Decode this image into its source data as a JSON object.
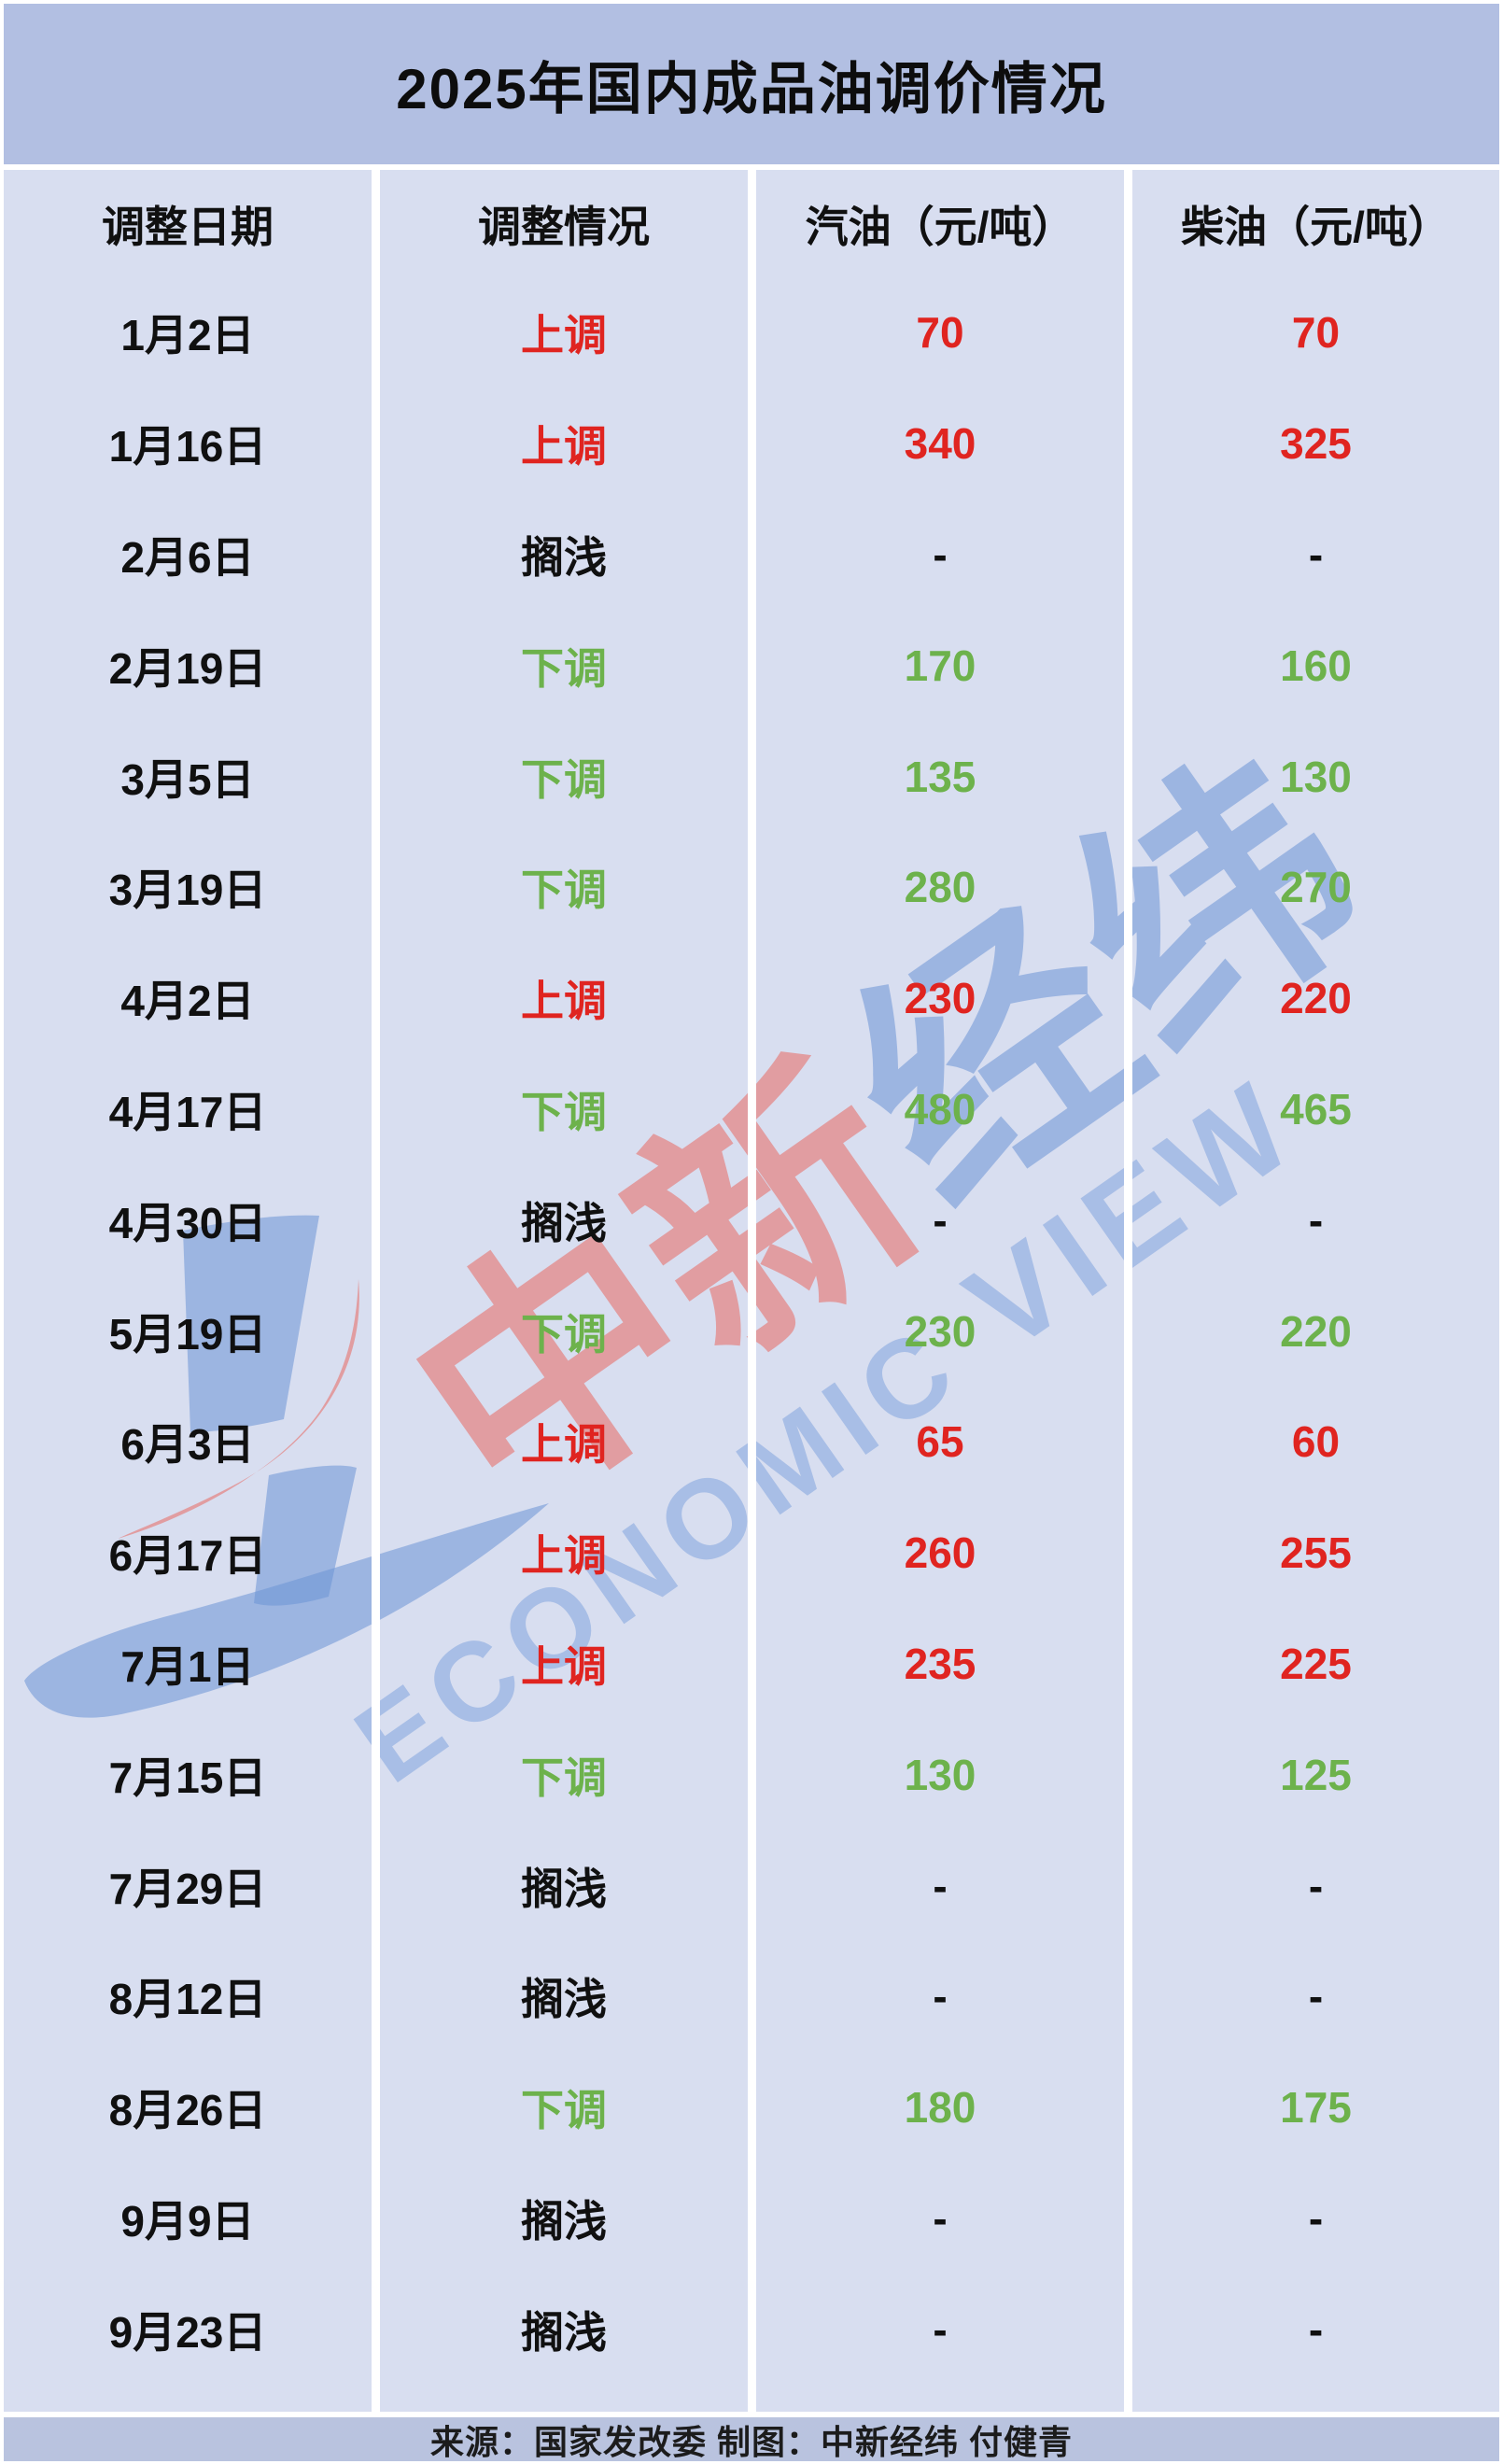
{
  "title": "2025年国内成品油调价情况",
  "table": {
    "headers": [
      "调整日期",
      "调整情况",
      "汽油（元/吨）",
      "柴油（元/吨）"
    ],
    "rows": [
      {
        "date": "1月2日",
        "action": "上调",
        "gasoline": "70",
        "diesel": "70",
        "type": "up"
      },
      {
        "date": "1月16日",
        "action": "上调",
        "gasoline": "340",
        "diesel": "325",
        "type": "up"
      },
      {
        "date": "2月6日",
        "action": "搁浅",
        "gasoline": "-",
        "diesel": "-",
        "type": "hold"
      },
      {
        "date": "2月19日",
        "action": "下调",
        "gasoline": "170",
        "diesel": "160",
        "type": "down"
      },
      {
        "date": "3月5日",
        "action": "下调",
        "gasoline": "135",
        "diesel": "130",
        "type": "down"
      },
      {
        "date": "3月19日",
        "action": "下调",
        "gasoline": "280",
        "diesel": "270",
        "type": "down"
      },
      {
        "date": "4月2日",
        "action": "上调",
        "gasoline": "230",
        "diesel": "220",
        "type": "up"
      },
      {
        "date": "4月17日",
        "action": "下调",
        "gasoline": "480",
        "diesel": "465",
        "type": "down"
      },
      {
        "date": "4月30日",
        "action": "搁浅",
        "gasoline": "-",
        "diesel": "-",
        "type": "hold"
      },
      {
        "date": "5月19日",
        "action": "下调",
        "gasoline": "230",
        "diesel": "220",
        "type": "down"
      },
      {
        "date": "6月3日",
        "action": "上调",
        "gasoline": "65",
        "diesel": "60",
        "type": "up"
      },
      {
        "date": "6月17日",
        "action": "上调",
        "gasoline": "260",
        "diesel": "255",
        "type": "up"
      },
      {
        "date": "7月1日",
        "action": "上调",
        "gasoline": "235",
        "diesel": "225",
        "type": "up"
      },
      {
        "date": "7月15日",
        "action": "下调",
        "gasoline": "130",
        "diesel": "125",
        "type": "down"
      },
      {
        "date": "7月29日",
        "action": "搁浅",
        "gasoline": "-",
        "diesel": "-",
        "type": "hold"
      },
      {
        "date": "8月12日",
        "action": "搁浅",
        "gasoline": "-",
        "diesel": "-",
        "type": "hold"
      },
      {
        "date": "8月26日",
        "action": "下调",
        "gasoline": "180",
        "diesel": "175",
        "type": "down"
      },
      {
        "date": "9月9日",
        "action": "搁浅",
        "gasoline": "-",
        "diesel": "-",
        "type": "hold"
      },
      {
        "date": "9月23日",
        "action": "搁浅",
        "gasoline": "-",
        "diesel": "-",
        "type": "hold"
      }
    ]
  },
  "footer": {
    "text": "来源：国家发改委 制图：中新经纬 付健青"
  },
  "watermark": {
    "red_chars": "中新",
    "blue_chars": "经纬",
    "letters_small": "ECONOMIC",
    "letters_big": " VIEW"
  },
  "colors": {
    "title_band": "#b2bfe2",
    "column_band": "#d8def0",
    "footer_band": "#b9c3df",
    "up_red": "#e02420",
    "down_green": "#6db24c",
    "text_black": "#101010",
    "watermark_blue": "rgba(108,148,214,0.55)",
    "watermark_red": "rgba(234,92,82,0.5)"
  },
  "chart_data": {
    "type": "table",
    "title": "2025年国内成品油调价情况",
    "categories": [
      "1月2日",
      "1月16日",
      "2月6日",
      "2月19日",
      "3月5日",
      "3月19日",
      "4月2日",
      "4月17日",
      "4月30日",
      "5月19日",
      "6月3日",
      "6月17日",
      "7月1日",
      "7月15日",
      "7月29日",
      "8月12日",
      "8月26日",
      "9月9日",
      "9月23日"
    ],
    "series": [
      {
        "name": "调整情况",
        "values": [
          "上调",
          "上调",
          "搁浅",
          "下调",
          "下调",
          "下调",
          "上调",
          "下调",
          "搁浅",
          "下调",
          "上调",
          "上调",
          "上调",
          "下调",
          "搁浅",
          "搁浅",
          "下调",
          "搁浅",
          "搁浅"
        ]
      },
      {
        "name": "汽油（元/吨）",
        "values": [
          70,
          340,
          null,
          170,
          135,
          280,
          230,
          480,
          null,
          230,
          65,
          260,
          235,
          130,
          null,
          null,
          180,
          null,
          null
        ]
      },
      {
        "name": "柴油（元/吨）",
        "values": [
          70,
          325,
          null,
          160,
          130,
          270,
          220,
          465,
          null,
          220,
          60,
          255,
          225,
          125,
          null,
          null,
          175,
          null,
          null
        ]
      }
    ]
  }
}
